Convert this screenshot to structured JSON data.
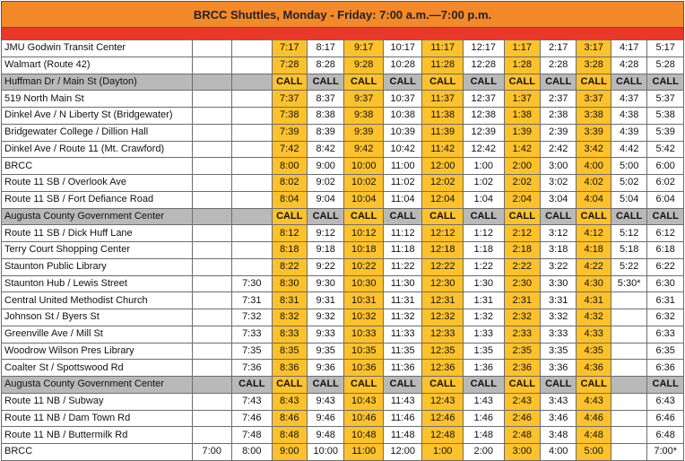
{
  "title": "BRCC Shuttles,  Monday - Friday: 7:00 a.m.—7:00 p.m.",
  "colors": {
    "title_bg": "#f4892a",
    "accent_bar": "#e8382a",
    "highlight": "#fdc22b",
    "call_row": "#b9b9b9"
  },
  "highlight_columns": [
    0,
    3,
    5,
    7,
    9,
    11
  ],
  "rows": [
    {
      "stop": "JMU Godwin Transit Center",
      "call": false,
      "times": [
        "",
        "",
        "7:17",
        "8:17",
        "9:17",
        "10:17",
        "11:17",
        "12:17",
        "1:17",
        "2:17",
        "3:17",
        "4:17",
        "5:17"
      ]
    },
    {
      "stop": "Walmart (Route 42)",
      "call": false,
      "times": [
        "",
        "",
        "7:28",
        "8:28",
        "9:28",
        "10:28",
        "11:28",
        "12:28",
        "1:28",
        "2:28",
        "3:28",
        "4:28",
        "5:28"
      ]
    },
    {
      "stop": "Huffman Dr / Main St (Dayton)",
      "call": true,
      "times": [
        "",
        "",
        "CALL",
        "CALL",
        "CALL",
        "CALL",
        "CALL",
        "CALL",
        "CALL",
        "CALL",
        "CALL",
        "CALL",
        "CALL"
      ]
    },
    {
      "stop": "519 North Main St",
      "call": false,
      "times": [
        "",
        "",
        "7:37",
        "8:37",
        "9:37",
        "10:37",
        "11:37",
        "12:37",
        "1:37",
        "2:37",
        "3:37",
        "4:37",
        "5:37"
      ]
    },
    {
      "stop": "Dinkel Ave / N Liberty St (Bridgewater)",
      "call": false,
      "times": [
        "",
        "",
        "7:38",
        "8:38",
        "9:38",
        "10:38",
        "11:38",
        "12:38",
        "1:38",
        "2:38",
        "3:38",
        "4:38",
        "5:38"
      ]
    },
    {
      "stop": "Bridgewater College / Dillion Hall",
      "call": false,
      "times": [
        "",
        "",
        "7:39",
        "8:39",
        "9:39",
        "10:39",
        "11:39",
        "12:39",
        "1:39",
        "2:39",
        "3:39",
        "4:39",
        "5:39"
      ]
    },
    {
      "stop": "Dinkel Ave / Route 11 (Mt. Crawford)",
      "call": false,
      "times": [
        "",
        "",
        "7:42",
        "8:42",
        "9:42",
        "10:42",
        "11:42",
        "12:42",
        "1:42",
        "2:42",
        "3:42",
        "4:42",
        "5:42"
      ]
    },
    {
      "stop": "BRCC",
      "call": false,
      "times": [
        "",
        "",
        "8:00",
        "9:00",
        "10:00",
        "11:00",
        "12:00",
        "1:00",
        "2:00",
        "3:00",
        "4:00",
        "5:00",
        "6:00"
      ]
    },
    {
      "stop": "Route 11 SB / Overlook Ave",
      "call": false,
      "times": [
        "",
        "",
        "8:02",
        "9:02",
        "10:02",
        "11:02",
        "12:02",
        "1:02",
        "2:02",
        "3:02",
        "4:02",
        "5:02",
        "6:02"
      ]
    },
    {
      "stop": "Route 11 SB / Fort Defiance Road",
      "call": false,
      "times": [
        "",
        "",
        "8:04",
        "9:04",
        "10:04",
        "11:04",
        "12:04",
        "1:04",
        "2:04",
        "3:04",
        "4:04",
        "5:04",
        "6:04"
      ]
    },
    {
      "stop": "Augusta County Government Center",
      "call": true,
      "times": [
        "",
        "",
        "CALL",
        "CALL",
        "CALL",
        "CALL",
        "CALL",
        "CALL",
        "CALL",
        "CALL",
        "CALL",
        "CALL",
        "CALL"
      ]
    },
    {
      "stop": "Route 11 SB / Dick Huff Lane",
      "call": false,
      "times": [
        "",
        "",
        "8:12",
        "9:12",
        "10:12",
        "11:12",
        "12:12",
        "1:12",
        "2:12",
        "3:12",
        "4:12",
        "5:12",
        "6:12"
      ]
    },
    {
      "stop": "Terry Court Shopping Center",
      "call": false,
      "times": [
        "",
        "",
        "8:18",
        "9:18",
        "10:18",
        "11:18",
        "12:18",
        "1:18",
        "2:18",
        "3:18",
        "4:18",
        "5:18",
        "6:18"
      ]
    },
    {
      "stop": "Staunton Public Library",
      "call": false,
      "times": [
        "",
        "",
        "8:22",
        "9:22",
        "10:22",
        "11:22",
        "12:22",
        "1:22",
        "2:22",
        "3:22",
        "4:22",
        "5:22",
        "6:22"
      ]
    },
    {
      "stop": "Staunton Hub / Lewis Street",
      "call": false,
      "times": [
        "",
        "7:30",
        "8:30",
        "9:30",
        "10:30",
        "11:30",
        "12:30",
        "1:30",
        "2:30",
        "3:30",
        "4:30",
        "5:30*",
        "6:30"
      ]
    },
    {
      "stop": "Central United Methodist Church",
      "call": false,
      "times": [
        "",
        "7:31",
        "8:31",
        "9:31",
        "10:31",
        "11:31",
        "12:31",
        "1:31",
        "2:31",
        "3:31",
        "4:31",
        "",
        "6:31"
      ]
    },
    {
      "stop": "Johnson St / Byers St",
      "call": false,
      "times": [
        "",
        "7:32",
        "8:32",
        "9:32",
        "10:32",
        "11:32",
        "12:32",
        "1:32",
        "2:32",
        "3:32",
        "4:32",
        "",
        "6:32"
      ]
    },
    {
      "stop": "Greenville Ave / Mill St",
      "call": false,
      "times": [
        "",
        "7:33",
        "8:33",
        "9:33",
        "10:33",
        "11:33",
        "12:33",
        "1:33",
        "2:33",
        "3:33",
        "4:33",
        "",
        "6:33"
      ]
    },
    {
      "stop": "Woodrow Wilson Pres Library",
      "call": false,
      "times": [
        "",
        "7:35",
        "8:35",
        "9:35",
        "10:35",
        "11:35",
        "12:35",
        "1:35",
        "2:35",
        "3:35",
        "4:35",
        "",
        "6:35"
      ]
    },
    {
      "stop": "Coalter St / Spottswood Rd",
      "call": false,
      "times": [
        "",
        "7:36",
        "8:36",
        "9:36",
        "10:36",
        "11:36",
        "12:36",
        "1:36",
        "2:36",
        "3:36",
        "4:36",
        "",
        "6:36"
      ]
    },
    {
      "stop": "Augusta County Government Center",
      "call": true,
      "times": [
        "",
        "CALL",
        "CALL",
        "CALL",
        "CALL",
        "CALL",
        "CALL",
        "CALL",
        "CALL",
        "CALL",
        "CALL",
        "",
        "CALL"
      ]
    },
    {
      "stop": "Route 11 NB / Subway",
      "call": false,
      "times": [
        "",
        "7:43",
        "8:43",
        "9:43",
        "10:43",
        "11:43",
        "12:43",
        "1:43",
        "2:43",
        "3:43",
        "4:43",
        "",
        "6:43"
      ]
    },
    {
      "stop": "Route 11 NB / Dam Town Rd",
      "call": false,
      "times": [
        "",
        "7:46",
        "8:46",
        "9:46",
        "10:46",
        "11:46",
        "12:46",
        "1:46",
        "2:46",
        "3:46",
        "4:46",
        "",
        "6:46"
      ]
    },
    {
      "stop": "Route 11 NB / Buttermilk Rd",
      "call": false,
      "times": [
        "",
        "7:48",
        "8:48",
        "9:48",
        "10:48",
        "11:48",
        "12:48",
        "1:48",
        "2:48",
        "3:48",
        "4:48",
        "",
        "6:48"
      ]
    },
    {
      "stop": "BRCC",
      "call": false,
      "times": [
        "7:00",
        "8:00",
        "9:00",
        "10:00",
        "11:00",
        "12:00",
        "1:00",
        "2:00",
        "3:00",
        "4:00",
        "5:00",
        "",
        "7:00*"
      ]
    }
  ]
}
